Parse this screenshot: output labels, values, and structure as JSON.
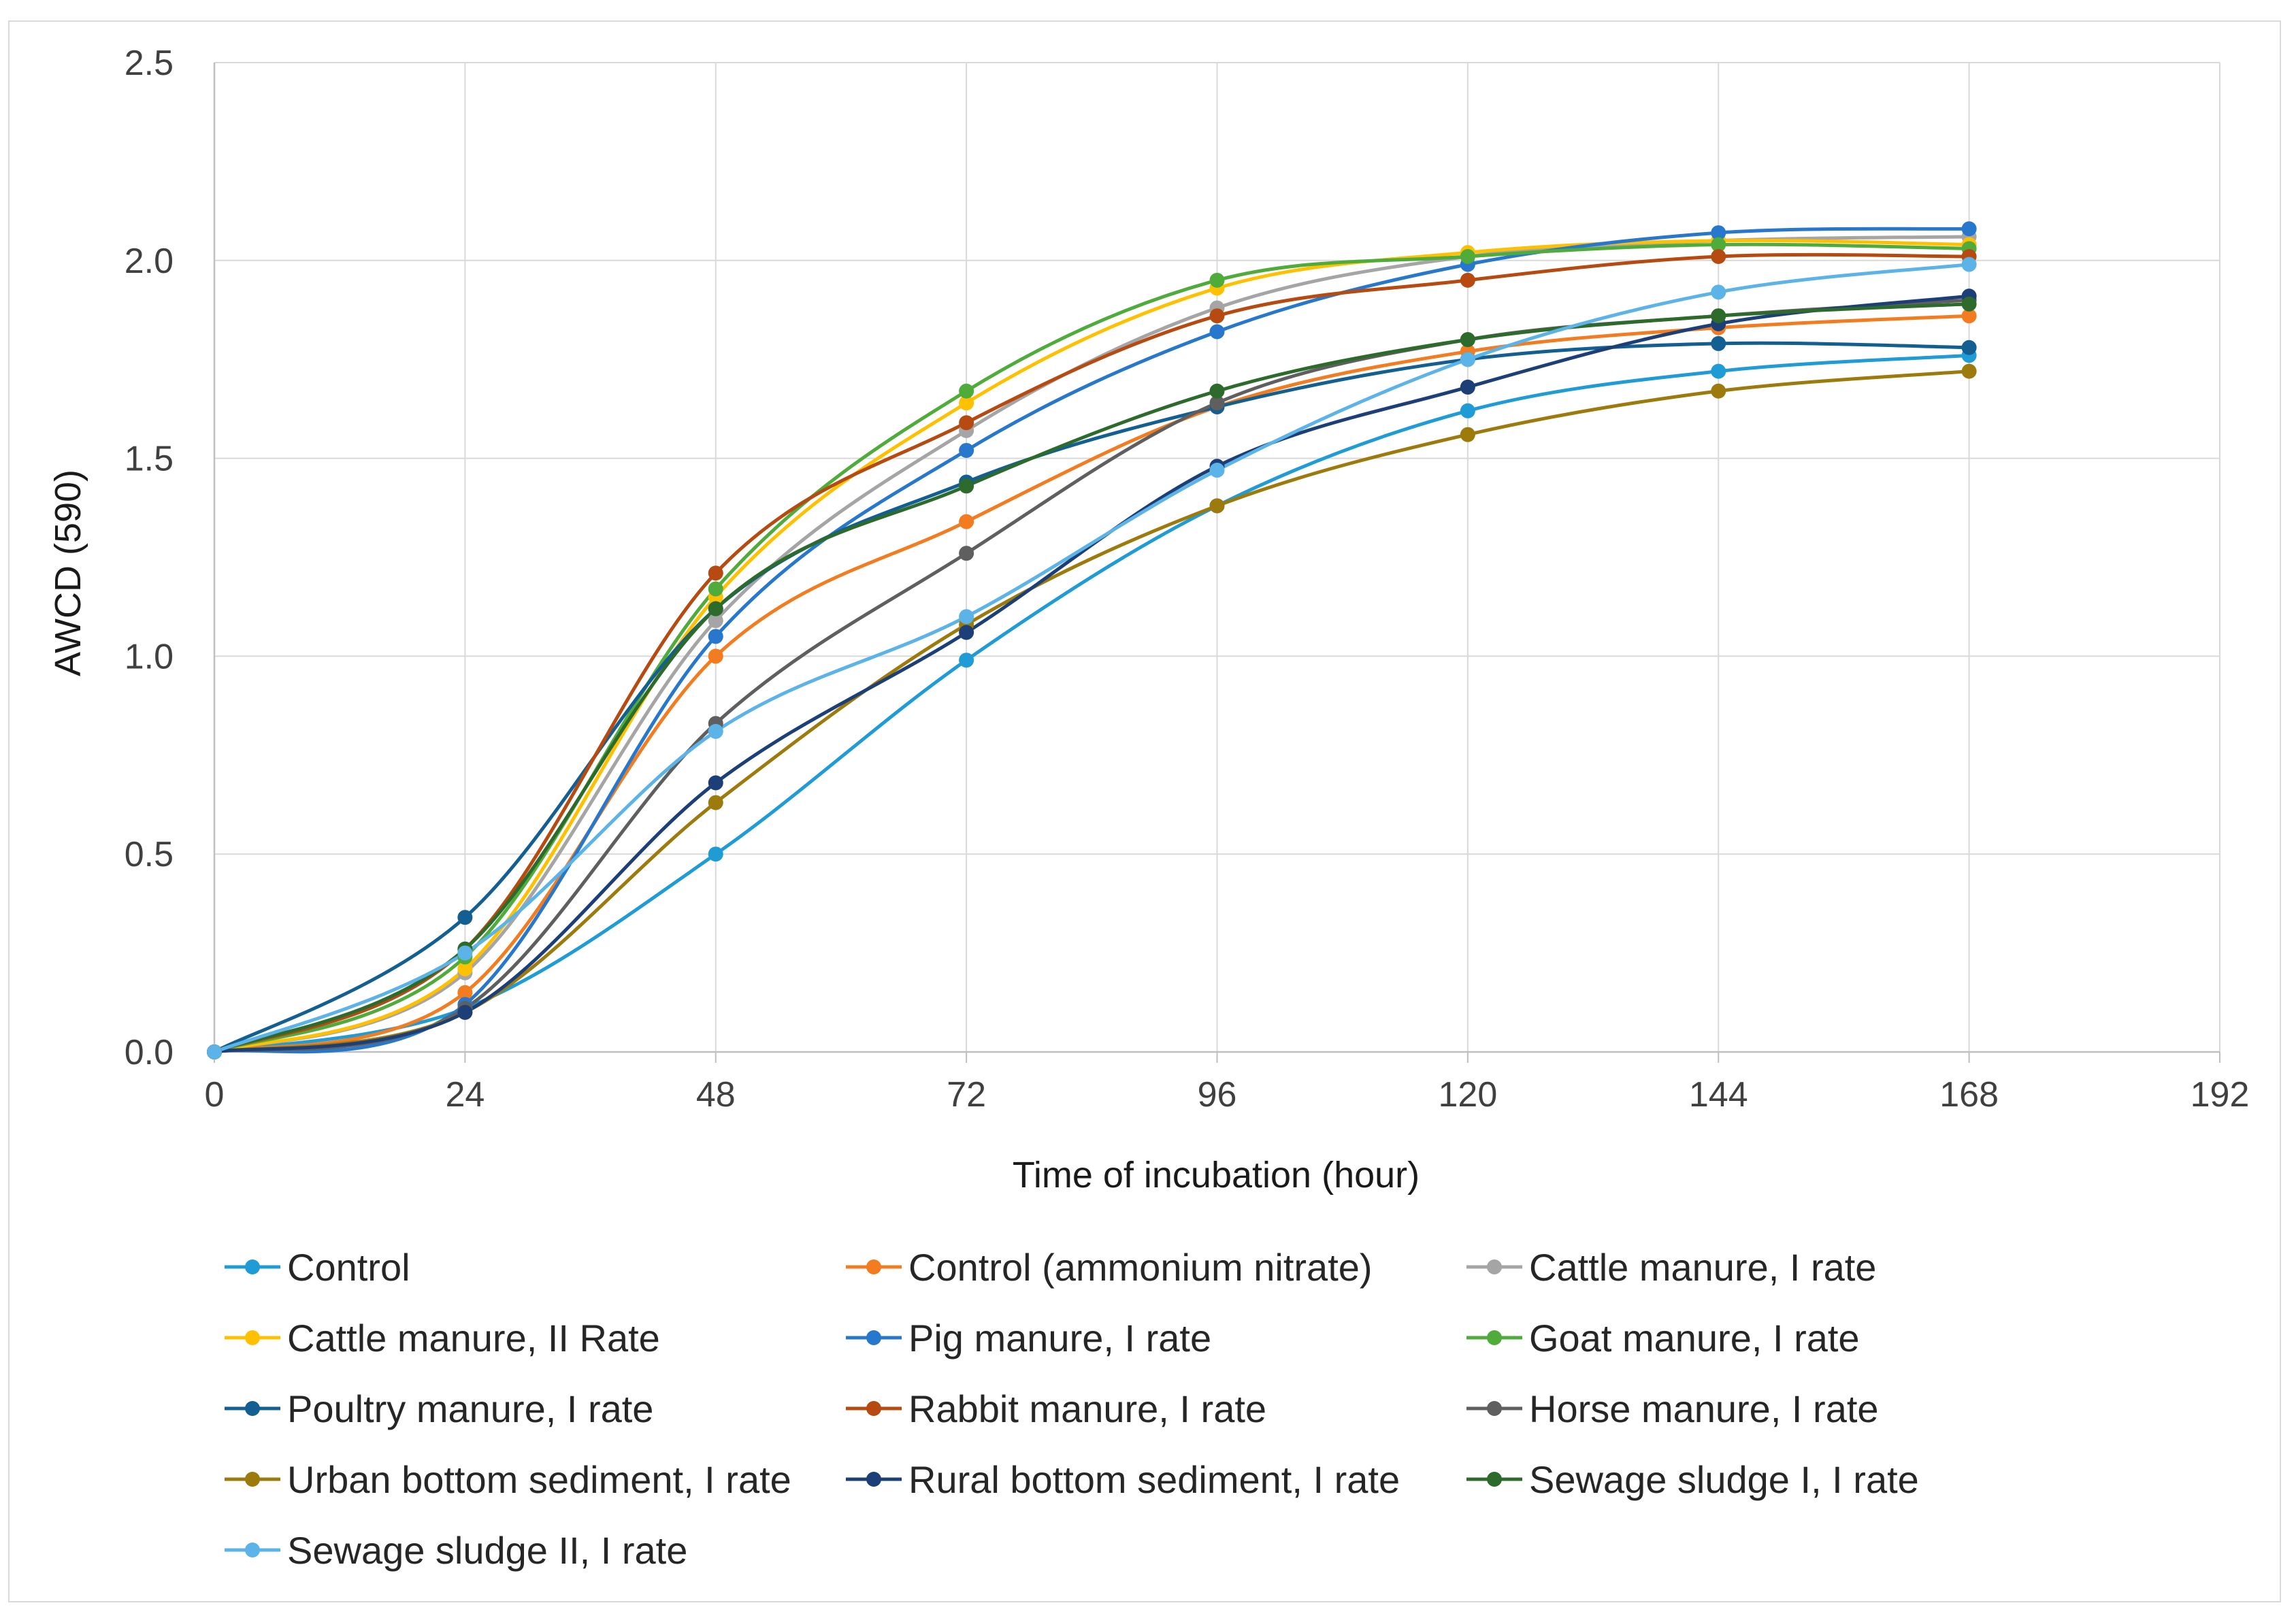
{
  "chart_data": {
    "type": "line",
    "xlabel": "Time of incubation (hour)",
    "ylabel": "AWCD (590)",
    "xlim": [
      0,
      192
    ],
    "ylim": [
      0,
      2.5
    ],
    "x_ticks": [
      "0",
      "24",
      "48",
      "72",
      "96",
      "120",
      "144",
      "168",
      "192"
    ],
    "y_ticks": [
      "0.0",
      "0.5",
      "1.0",
      "1.5",
      "2.0",
      "2.5"
    ],
    "grid": true,
    "smooth": true,
    "legend_position": "bottom",
    "x": [
      0,
      24,
      48,
      72,
      96,
      120,
      144,
      168
    ],
    "series": [
      {
        "name": "Control",
        "color": "#1f9bd6",
        "values": [
          0,
          0.11,
          0.5,
          0.99,
          1.38,
          1.62,
          1.72,
          1.76
        ]
      },
      {
        "name": "Control (ammonium nitrate)",
        "color": "#f47c20",
        "values": [
          0,
          0.15,
          1.0,
          1.34,
          1.63,
          1.77,
          1.83,
          1.86
        ]
      },
      {
        "name": "Cattle manure, I rate",
        "color": "#a5a5a5",
        "values": [
          0,
          0.2,
          1.09,
          1.57,
          1.88,
          2.01,
          2.05,
          2.06
        ]
      },
      {
        "name": "Cattle manure, II Rate",
        "color": "#ffc000",
        "values": [
          0,
          0.21,
          1.15,
          1.64,
          1.93,
          2.02,
          2.05,
          2.04
        ]
      },
      {
        "name": "Pig manure, I rate",
        "color": "#2777cc",
        "values": [
          0,
          0.12,
          1.05,
          1.52,
          1.82,
          1.99,
          2.07,
          2.08
        ]
      },
      {
        "name": "Goat manure, I rate",
        "color": "#4fac3b",
        "values": [
          0,
          0.24,
          1.17,
          1.67,
          1.95,
          2.01,
          2.04,
          2.03
        ]
      },
      {
        "name": "Poultry manure, I rate",
        "color": "#135f91",
        "values": [
          0,
          0.34,
          1.12,
          1.44,
          1.63,
          1.75,
          1.79,
          1.78
        ]
      },
      {
        "name": "Rabbit manure, I rate",
        "color": "#b74a10",
        "values": [
          0,
          0.26,
          1.21,
          1.59,
          1.86,
          1.95,
          2.01,
          2.01
        ]
      },
      {
        "name": "Horse manure, I rate",
        "color": "#5f5f5f",
        "values": [
          0,
          0.11,
          0.83,
          1.26,
          1.64,
          1.8,
          1.86,
          1.9
        ]
      },
      {
        "name": "Urban bottom sediment, I rate",
        "color": "#9c7a0c",
        "values": [
          0,
          0.1,
          0.63,
          1.08,
          1.38,
          1.56,
          1.67,
          1.72
        ]
      },
      {
        "name": "Rural bottom sediment, I rate",
        "color": "#1c3f78",
        "values": [
          0,
          0.1,
          0.68,
          1.06,
          1.48,
          1.68,
          1.84,
          1.91
        ]
      },
      {
        "name": "Sewage sludge I, I rate",
        "color": "#2c6b2c",
        "values": [
          0,
          0.26,
          1.12,
          1.43,
          1.67,
          1.8,
          1.86,
          1.89
        ]
      },
      {
        "name": "Sewage sludge II, I rate",
        "color": "#5bb3e8",
        "values": [
          0,
          0.25,
          0.81,
          1.1,
          1.47,
          1.75,
          1.92,
          1.99
        ]
      }
    ]
  }
}
